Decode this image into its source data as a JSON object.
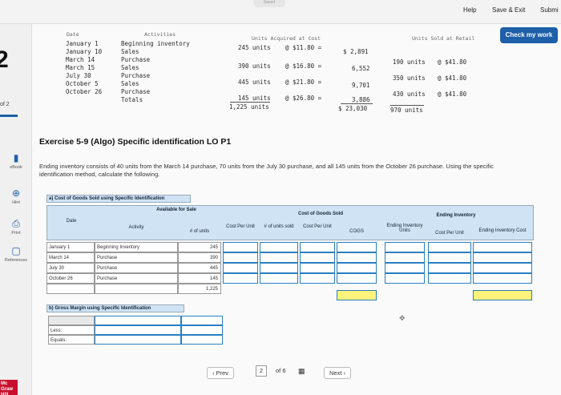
{
  "header": {
    "help": "Help",
    "save_exit": "Save & Exit",
    "submit": "Submi",
    "check_my_work": "Check my work",
    "saved": "Saved"
  },
  "sidebar": {
    "question_number": "2",
    "page_of": "of 2",
    "items": [
      {
        "label": "eBook"
      },
      {
        "label": "Hint"
      },
      {
        "label": "Print"
      },
      {
        "label": "References"
      }
    ],
    "logo_text": "Mc Graw Hill"
  },
  "data_table": {
    "col_date": "Date",
    "col_activities": "Activities",
    "col_units_acquired": "Units Acquired at Cost",
    "col_units_sold": "Units Sold at Retail",
    "rows": [
      {
        "date": "January 1",
        "activity": "Beginning inventory",
        "units": "245 units",
        "cost": "@ $11.80 =",
        "total": "$ 2,891",
        "sold": "",
        "retail": ""
      },
      {
        "date": "January 10",
        "activity": "Sales",
        "units": "",
        "cost": "",
        "total": "",
        "sold": "190 units",
        "retail": "@ $41.80"
      },
      {
        "date": "March 14",
        "activity": "Purchase",
        "units": "390 units",
        "cost": "@ $16.80 =",
        "total": "6,552",
        "sold": "",
        "retail": ""
      },
      {
        "date": "March 15",
        "activity": "Sales",
        "units": "",
        "cost": "",
        "total": "",
        "sold": "350 units",
        "retail": "@ $41.80"
      },
      {
        "date": "July 30",
        "activity": "Purchase",
        "units": "445 units",
        "cost": "@ $21.80 =",
        "total": "9,701",
        "sold": "",
        "retail": ""
      },
      {
        "date": "October 5",
        "activity": "Sales",
        "units": "",
        "cost": "",
        "total": "",
        "sold": "430 units",
        "retail": "@ $41.80"
      },
      {
        "date": "October 26",
        "activity": "Purchase",
        "units": "145 units",
        "cost": "@ $26.80 =",
        "total": "3,886",
        "sold": "",
        "retail": ""
      }
    ],
    "totals_label": "Totals",
    "total_units": "1,225 units",
    "total_cost": "$ 23,030",
    "total_sold": "970 units"
  },
  "exercise": {
    "title": "Exercise 5-9 (Algo) Specific identification LO P1",
    "description": "Ending inventory consists of 40 units from the March 14 purchase, 70 units from the July 30 purchase, and all 145 units from the October 26 purchase. Using the specific identification method, calculate the following."
  },
  "part_a": {
    "title": "a) Cost of Goods Sold using Specific Identification",
    "available_for_sale": "Available for Sale",
    "cogs_group": "Cost of Goods Sold",
    "ending_group": "Ending Inventory",
    "columns": [
      "Date",
      "Activity",
      "# of units",
      "Cost Per Unit",
      "# of units sold",
      "Cost Per Unit",
      "COGS",
      "Ending Inventory Units",
      "Cost Per Unit",
      "Ending Inventory Cost"
    ],
    "rows": [
      {
        "date": "January 1",
        "activity": "Beginning Inventory",
        "units": "245"
      },
      {
        "date": "March 14",
        "activity": "Purchase",
        "units": "390"
      },
      {
        "date": "July 30",
        "activity": "Purchase",
        "units": "445"
      },
      {
        "date": "October 26",
        "activity": "Purchase",
        "units": "145"
      }
    ],
    "total_units": "1,225"
  },
  "part_b": {
    "title": "b) Gross Margin using Specific Identification",
    "less": "Less:",
    "equals": "Equals:"
  },
  "footer_nav": {
    "prev": "Prev",
    "current": "2",
    "of": "of 6",
    "next": "Next"
  }
}
